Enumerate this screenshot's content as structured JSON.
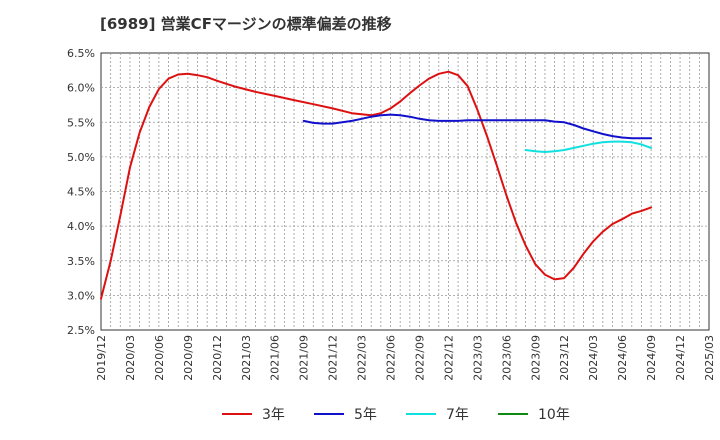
{
  "chart_data": {
    "type": "line",
    "title": "[6989]  営業CFマージンの標準偏差の推移",
    "xlabel": "",
    "ylabel": "",
    "ylim": [
      2.5,
      6.5
    ],
    "y_ticks": [
      "6.5%",
      "6.0%",
      "5.5%",
      "5.0%",
      "4.5%",
      "4.0%",
      "3.5%",
      "3.0%",
      "2.5%"
    ],
    "y_tick_values": [
      6.5,
      6.0,
      5.5,
      5.0,
      4.5,
      4.0,
      3.5,
      3.0,
      2.5
    ],
    "x_ticks": [
      "2019/12",
      "2020/03",
      "2020/06",
      "2020/09",
      "2020/12",
      "2021/03",
      "2021/06",
      "2021/09",
      "2021/12",
      "2022/03",
      "2022/06",
      "2022/09",
      "2022/12",
      "2023/03",
      "2023/06",
      "2023/09",
      "2023/12",
      "2024/03",
      "2024/06",
      "2024/09",
      "2024/12",
      "2025/03"
    ],
    "grid": true,
    "legend_position": "bottom",
    "series": [
      {
        "name": "3年",
        "color": "#dd1111",
        "points": [
          [
            "2019/12",
            2.95
          ],
          [
            "2020/01",
            3.5
          ],
          [
            "2020/02",
            4.15
          ],
          [
            "2020/03",
            4.85
          ],
          [
            "2020/04",
            5.35
          ],
          [
            "2020/05",
            5.72
          ],
          [
            "2020/06",
            5.98
          ],
          [
            "2020/07",
            6.13
          ],
          [
            "2020/08",
            6.19
          ],
          [
            "2020/09",
            6.2
          ],
          [
            "2020/10",
            6.18
          ],
          [
            "2020/11",
            6.15
          ],
          [
            "2020/12",
            6.1
          ],
          [
            "2021/02",
            6.01
          ],
          [
            "2021/04",
            5.94
          ],
          [
            "2021/06",
            5.88
          ],
          [
            "2021/08",
            5.82
          ],
          [
            "2021/10",
            5.76
          ],
          [
            "2021/12",
            5.7
          ],
          [
            "2022/02",
            5.63
          ],
          [
            "2022/04",
            5.6
          ],
          [
            "2022/05",
            5.63
          ],
          [
            "2022/06",
            5.7
          ],
          [
            "2022/07",
            5.8
          ],
          [
            "2022/08",
            5.92
          ],
          [
            "2022/09",
            6.03
          ],
          [
            "2022/10",
            6.13
          ],
          [
            "2022/11",
            6.2
          ],
          [
            "2022/12",
            6.23
          ],
          [
            "2023/01",
            6.18
          ],
          [
            "2023/02",
            6.02
          ],
          [
            "2023/03",
            5.68
          ],
          [
            "2023/04",
            5.3
          ],
          [
            "2023/05",
            4.88
          ],
          [
            "2023/06",
            4.45
          ],
          [
            "2023/07",
            4.05
          ],
          [
            "2023/08",
            3.72
          ],
          [
            "2023/09",
            3.45
          ],
          [
            "2023/10",
            3.3
          ],
          [
            "2023/11",
            3.23
          ],
          [
            "2023/12",
            3.25
          ],
          [
            "2024/01",
            3.4
          ],
          [
            "2024/02",
            3.6
          ],
          [
            "2024/03",
            3.78
          ],
          [
            "2024/04",
            3.92
          ],
          [
            "2024/05",
            4.03
          ],
          [
            "2024/06",
            4.1
          ],
          [
            "2024/07",
            4.18
          ],
          [
            "2024/08",
            4.22
          ],
          [
            "2024/09",
            4.27
          ]
        ]
      },
      {
        "name": "5年",
        "color": "#1111cc",
        "points": [
          [
            "2021/09",
            5.52
          ],
          [
            "2021/10",
            5.49
          ],
          [
            "2021/11",
            5.48
          ],
          [
            "2021/12",
            5.48
          ],
          [
            "2022/01",
            5.5
          ],
          [
            "2022/02",
            5.52
          ],
          [
            "2022/03",
            5.55
          ],
          [
            "2022/04",
            5.58
          ],
          [
            "2022/05",
            5.6
          ],
          [
            "2022/06",
            5.61
          ],
          [
            "2022/07",
            5.6
          ],
          [
            "2022/08",
            5.58
          ],
          [
            "2022/09",
            5.55
          ],
          [
            "2022/10",
            5.53
          ],
          [
            "2022/11",
            5.52
          ],
          [
            "2022/12",
            5.52
          ],
          [
            "2023/01",
            5.52
          ],
          [
            "2023/02",
            5.53
          ],
          [
            "2023/03",
            5.53
          ],
          [
            "2023/04",
            5.53
          ],
          [
            "2023/06",
            5.53
          ],
          [
            "2023/08",
            5.53
          ],
          [
            "2023/10",
            5.53
          ],
          [
            "2023/11",
            5.51
          ],
          [
            "2023/12",
            5.5
          ],
          [
            "2024/01",
            5.46
          ],
          [
            "2024/02",
            5.41
          ],
          [
            "2024/03",
            5.37
          ],
          [
            "2024/04",
            5.33
          ],
          [
            "2024/05",
            5.3
          ],
          [
            "2024/06",
            5.28
          ],
          [
            "2024/07",
            5.27
          ],
          [
            "2024/08",
            5.27
          ],
          [
            "2024/09",
            5.27
          ]
        ]
      },
      {
        "name": "7年",
        "color": "#11e0e0",
        "points": [
          [
            "2023/08",
            5.1
          ],
          [
            "2023/09",
            5.08
          ],
          [
            "2023/10",
            5.07
          ],
          [
            "2023/11",
            5.08
          ],
          [
            "2023/12",
            5.1
          ],
          [
            "2024/01",
            5.13
          ],
          [
            "2024/02",
            5.16
          ],
          [
            "2024/03",
            5.19
          ],
          [
            "2024/04",
            5.21
          ],
          [
            "2024/05",
            5.22
          ],
          [
            "2024/06",
            5.22
          ],
          [
            "2024/07",
            5.21
          ],
          [
            "2024/08",
            5.18
          ],
          [
            "2024/09",
            5.13
          ]
        ]
      },
      {
        "name": "10年",
        "color": "#118811",
        "points": []
      }
    ]
  }
}
